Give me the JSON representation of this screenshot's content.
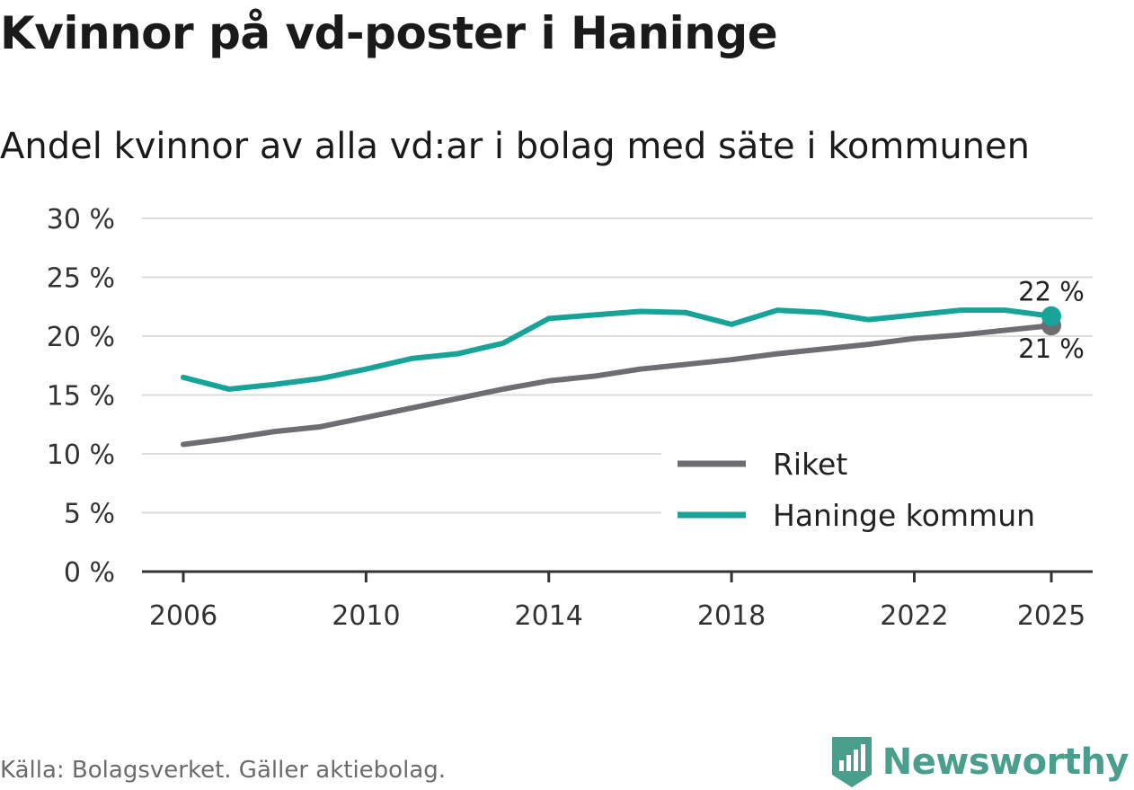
{
  "title": "Kvinnor på vd-poster i Haninge",
  "subtitle": "Andel kvinnor av alla vd:ar i bolag med säte i kommunen",
  "source": "Källa: Bolagsverket. Gäller aktiebolag.",
  "brand": {
    "name": "Newsworthy",
    "icon": "newsworthy-logo-icon",
    "color": "#4a9e8c"
  },
  "chart_data": {
    "type": "line",
    "title": "Kvinnor på vd-poster i Haninge",
    "xlabel": "",
    "ylabel": "",
    "x": [
      2006,
      2007,
      2008,
      2009,
      2010,
      2011,
      2012,
      2013,
      2014,
      2015,
      2016,
      2017,
      2018,
      2019,
      2020,
      2021,
      2022,
      2023,
      2024,
      2025
    ],
    "xlim": [
      2006,
      2025
    ],
    "ylim": [
      0,
      30
    ],
    "x_ticks": [
      2006,
      2010,
      2014,
      2018,
      2022,
      2025
    ],
    "y_ticks": [
      0,
      5,
      10,
      15,
      20,
      25,
      30
    ],
    "y_tick_labels": [
      "0 %",
      "5 %",
      "10 %",
      "15 %",
      "20 %",
      "25 %",
      "30 %"
    ],
    "grid": true,
    "legend_position": "bottom-right",
    "series": [
      {
        "name": "Riket",
        "color": "#6e6d72",
        "values": [
          10.8,
          11.3,
          11.9,
          12.3,
          13.1,
          13.9,
          14.7,
          15.5,
          16.2,
          16.6,
          17.2,
          17.6,
          18.0,
          18.5,
          18.9,
          19.3,
          19.8,
          20.1,
          20.5,
          20.9
        ],
        "end_label": "21 %"
      },
      {
        "name": "Haninge kommun",
        "color": "#17a398",
        "values": [
          16.5,
          15.5,
          15.9,
          16.4,
          17.2,
          18.1,
          18.5,
          19.4,
          21.5,
          21.8,
          22.1,
          22.0,
          21.0,
          22.2,
          22.0,
          21.4,
          21.8,
          22.2,
          22.2,
          21.7
        ],
        "end_label": "22 %"
      }
    ]
  }
}
